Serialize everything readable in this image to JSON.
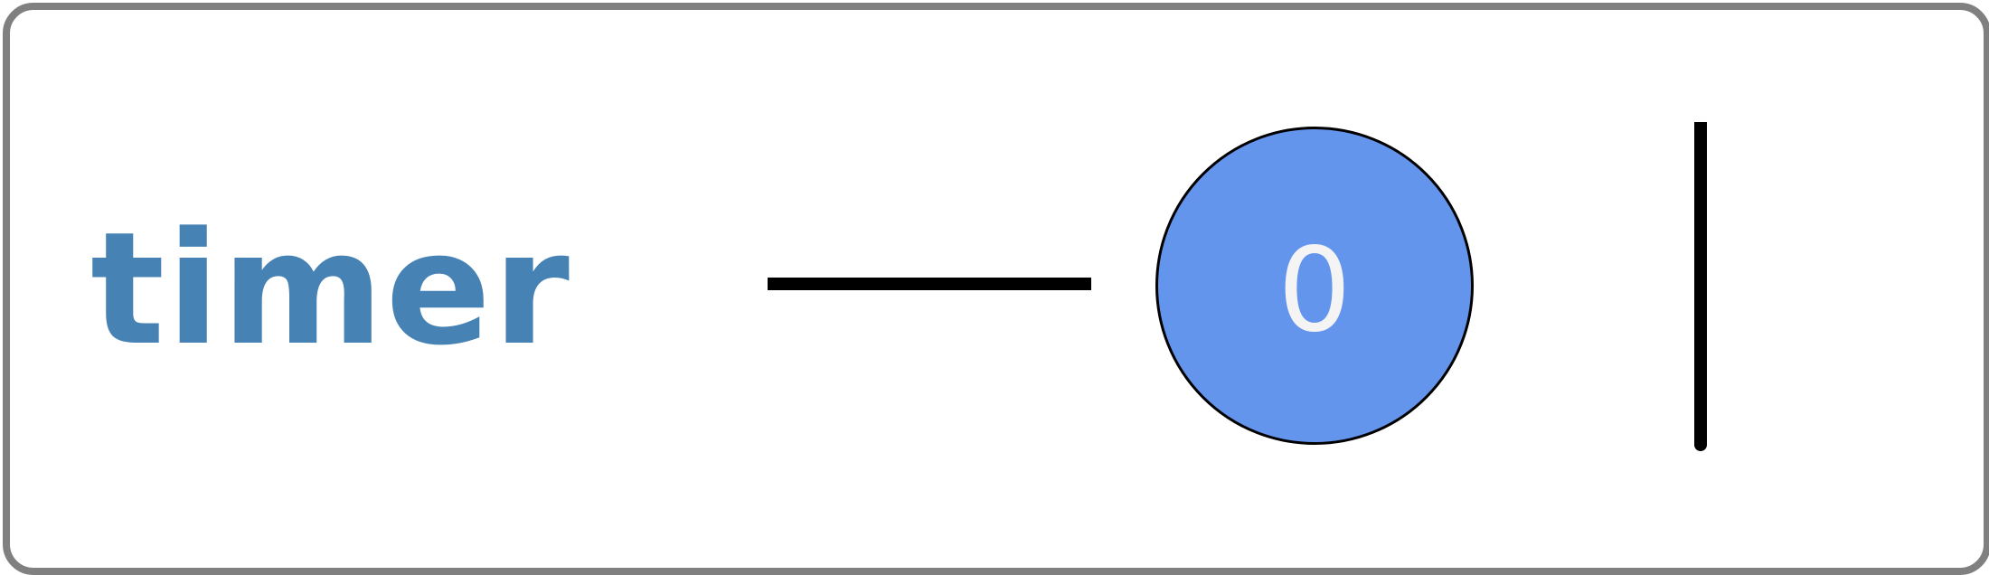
{
  "widget": {
    "title": "timer",
    "counter_value": "0"
  },
  "colors": {
    "title": "#4682B4",
    "counter_fill": "#6495ED",
    "counter_text": "#f4f4f4",
    "frame_border": "#808080",
    "line": "#000000"
  }
}
